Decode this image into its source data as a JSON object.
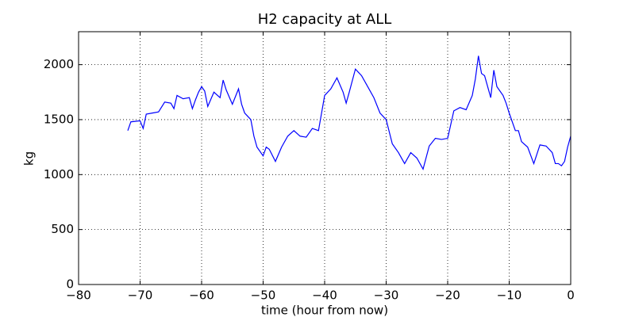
{
  "chart_data": {
    "type": "line",
    "title": "H2 capacity at ALL",
    "xlabel": "time (hour from now)",
    "ylabel": "kg",
    "xlim": [
      -80,
      0
    ],
    "ylim": [
      0,
      2300
    ],
    "xticks": [
      {
        "value": -80,
        "label": "−80"
      },
      {
        "value": -70,
        "label": "−70"
      },
      {
        "value": -60,
        "label": "−60"
      },
      {
        "value": -50,
        "label": "−50"
      },
      {
        "value": -40,
        "label": "−40"
      },
      {
        "value": -30,
        "label": "−30"
      },
      {
        "value": -20,
        "label": "−20"
      },
      {
        "value": -10,
        "label": "−10"
      },
      0
    ],
    "yticks": [
      0,
      500,
      1000,
      1500,
      2000
    ],
    "grid": true,
    "series": [
      {
        "name": "H2 capacity",
        "color": "#0000ff",
        "x": [
          -72,
          -71.5,
          -70,
          -69.5,
          -69,
          -68,
          -67,
          -66,
          -65,
          -64.5,
          -64,
          -63,
          -62,
          -61.5,
          -61,
          -60.5,
          -60,
          -59.5,
          -59,
          -58,
          -57,
          -56.5,
          -56,
          -55,
          -54,
          -53.5,
          -53,
          -52,
          -51.5,
          -51,
          -50,
          -49.5,
          -49,
          -48,
          -47,
          -46,
          -45,
          -44,
          -43,
          -42,
          -41,
          -40,
          -39,
          -38,
          -37,
          -36.5,
          -36,
          -35,
          -34,
          -33,
          -32,
          -31,
          -30,
          -29,
          -28,
          -27,
          -26,
          -25,
          -24,
          -23,
          -22,
          -21,
          -20,
          -19,
          -18,
          -17,
          -16,
          -15.5,
          -15,
          -14.5,
          -14,
          -13,
          -12.5,
          -12,
          -11,
          -10.5,
          -10,
          -9,
          -8.5,
          -8,
          -7,
          -6,
          -5,
          -4,
          -3,
          -2.5,
          -2,
          -1.5,
          -1,
          -0.5,
          0
        ],
        "values": [
          1400,
          1480,
          1490,
          1420,
          1550,
          1560,
          1570,
          1660,
          1650,
          1600,
          1720,
          1690,
          1700,
          1600,
          1680,
          1750,
          1800,
          1760,
          1620,
          1750,
          1700,
          1860,
          1770,
          1640,
          1780,
          1640,
          1560,
          1500,
          1350,
          1250,
          1170,
          1250,
          1230,
          1120,
          1250,
          1350,
          1400,
          1350,
          1340,
          1420,
          1400,
          1720,
          1780,
          1880,
          1750,
          1650,
          1750,
          1960,
          1900,
          1800,
          1700,
          1560,
          1500,
          1280,
          1200,
          1100,
          1200,
          1150,
          1050,
          1260,
          1330,
          1320,
          1330,
          1580,
          1610,
          1590,
          1720,
          1870,
          2080,
          1920,
          1900,
          1700,
          1950,
          1800,
          1720,
          1650,
          1560,
          1400,
          1400,
          1300,
          1250,
          1100,
          1270,
          1260,
          1200,
          1100,
          1100,
          1080,
          1120,
          1250,
          1350
        ]
      }
    ]
  }
}
